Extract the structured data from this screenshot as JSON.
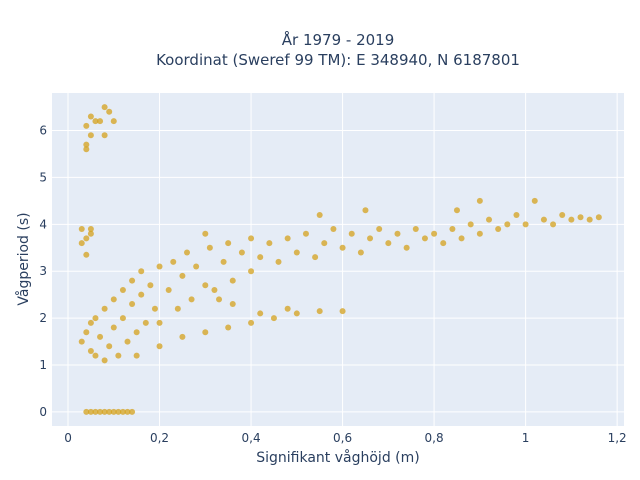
{
  "chart_data": {
    "type": "scatter",
    "title": "År 1979 - 2019",
    "subtitle": "Koordinat (Sweref 99 TM): E 348940, N 6187801",
    "xlabel": "Signifikant våghöjd (m)",
    "ylabel": "Vågperiod (s)",
    "xlim": [
      -0.035,
      1.215
    ],
    "ylim": [
      -0.3,
      6.8
    ],
    "x_ticks": [
      0,
      0.2,
      0.4,
      0.6,
      0.8,
      1,
      1.2
    ],
    "x_tick_labels": [
      "0",
      "0,2",
      "0,4",
      "0,6",
      "0,8",
      "1",
      "1,2"
    ],
    "y_ticks": [
      0,
      1,
      2,
      3,
      4,
      5,
      6
    ],
    "y_tick_labels": [
      "0",
      "1",
      "2",
      "3",
      "4",
      "5",
      "6"
    ],
    "grid": true,
    "marker_color": "#d4a21c",
    "series": [
      {
        "points": [
          [
            0.03,
            1.5
          ],
          [
            0.04,
            1.7
          ],
          [
            0.05,
            1.3
          ],
          [
            0.05,
            1.9
          ],
          [
            0.06,
            1.2
          ],
          [
            0.06,
            2.0
          ],
          [
            0.07,
            1.6
          ],
          [
            0.08,
            1.1
          ],
          [
            0.08,
            2.2
          ],
          [
            0.09,
            1.4
          ],
          [
            0.1,
            1.8
          ],
          [
            0.1,
            2.4
          ],
          [
            0.11,
            1.2
          ],
          [
            0.12,
            2.0
          ],
          [
            0.12,
            2.6
          ],
          [
            0.13,
            1.5
          ],
          [
            0.14,
            2.3
          ],
          [
            0.14,
            2.8
          ],
          [
            0.15,
            1.7
          ],
          [
            0.16,
            2.5
          ],
          [
            0.16,
            3.0
          ],
          [
            0.17,
            1.9
          ],
          [
            0.18,
            2.7
          ],
          [
            0.19,
            2.2
          ],
          [
            0.2,
            3.1
          ],
          [
            0.2,
            1.9
          ],
          [
            0.22,
            2.6
          ],
          [
            0.23,
            3.2
          ],
          [
            0.24,
            2.2
          ],
          [
            0.25,
            2.9
          ],
          [
            0.26,
            3.4
          ],
          [
            0.27,
            2.4
          ],
          [
            0.28,
            3.1
          ],
          [
            0.3,
            2.7
          ],
          [
            0.31,
            3.5
          ],
          [
            0.32,
            2.6
          ],
          [
            0.34,
            3.2
          ],
          [
            0.35,
            3.6
          ],
          [
            0.36,
            2.8
          ],
          [
            0.38,
            3.4
          ],
          [
            0.4,
            3.7
          ],
          [
            0.4,
            3.0
          ],
          [
            0.42,
            3.3
          ],
          [
            0.44,
            3.6
          ],
          [
            0.46,
            3.2
          ],
          [
            0.48,
            3.7
          ],
          [
            0.5,
            3.4
          ],
          [
            0.52,
            3.8
          ],
          [
            0.54,
            3.3
          ],
          [
            0.56,
            3.6
          ],
          [
            0.58,
            3.9
          ],
          [
            0.6,
            3.5
          ],
          [
            0.62,
            3.8
          ],
          [
            0.64,
            3.4
          ],
          [
            0.66,
            3.7
          ],
          [
            0.68,
            3.9
          ],
          [
            0.7,
            3.6
          ],
          [
            0.72,
            3.8
          ],
          [
            0.74,
            3.5
          ],
          [
            0.76,
            3.9
          ],
          [
            0.78,
            3.7
          ],
          [
            0.8,
            3.8
          ],
          [
            0.82,
            3.6
          ],
          [
            0.84,
            3.9
          ],
          [
            0.86,
            3.7
          ],
          [
            0.88,
            4.0
          ],
          [
            0.9,
            3.8
          ],
          [
            0.92,
            4.1
          ],
          [
            0.94,
            3.9
          ],
          [
            0.96,
            4.0
          ],
          [
            0.98,
            4.2
          ],
          [
            1.0,
            4.0
          ],
          [
            1.02,
            4.5
          ],
          [
            1.04,
            4.1
          ],
          [
            1.06,
            4.0
          ],
          [
            1.08,
            4.2
          ],
          [
            1.1,
            4.1
          ],
          [
            1.12,
            4.15
          ],
          [
            1.14,
            4.1
          ],
          [
            1.16,
            4.15
          ],
          [
            0.9,
            4.5
          ],
          [
            0.85,
            4.3
          ],
          [
            0.65,
            4.3
          ],
          [
            0.55,
            4.2
          ],
          [
            0.3,
            3.8
          ],
          [
            0.36,
            2.3
          ],
          [
            0.15,
            1.2
          ],
          [
            0.2,
            1.4
          ],
          [
            0.25,
            1.6
          ],
          [
            0.3,
            1.7
          ],
          [
            0.35,
            1.8
          ],
          [
            0.4,
            1.9
          ],
          [
            0.45,
            2.0
          ],
          [
            0.5,
            2.1
          ],
          [
            0.55,
            2.15
          ],
          [
            0.6,
            2.15
          ],
          [
            0.33,
            2.4
          ],
          [
            0.42,
            2.1
          ],
          [
            0.48,
            2.2
          ],
          [
            0.04,
            6.1
          ],
          [
            0.05,
            5.9
          ],
          [
            0.04,
            5.7
          ],
          [
            0.05,
            6.3
          ],
          [
            0.06,
            6.2
          ],
          [
            0.07,
            6.2
          ],
          [
            0.08,
            6.5
          ],
          [
            0.09,
            6.4
          ],
          [
            0.1,
            6.2
          ],
          [
            0.08,
            5.9
          ],
          [
            0.04,
            5.6
          ],
          [
            0.03,
            3.9
          ],
          [
            0.04,
            3.7
          ],
          [
            0.05,
            3.8
          ],
          [
            0.05,
            3.9
          ],
          [
            0.03,
            3.6
          ],
          [
            0.04,
            3.35
          ],
          [
            0.04,
            0
          ],
          [
            0.05,
            0
          ],
          [
            0.06,
            0
          ],
          [
            0.07,
            0
          ],
          [
            0.08,
            0
          ],
          [
            0.09,
            0
          ],
          [
            0.1,
            0
          ],
          [
            0.11,
            0
          ],
          [
            0.12,
            0
          ],
          [
            0.13,
            0
          ],
          [
            0.14,
            0
          ]
        ]
      }
    ]
  }
}
